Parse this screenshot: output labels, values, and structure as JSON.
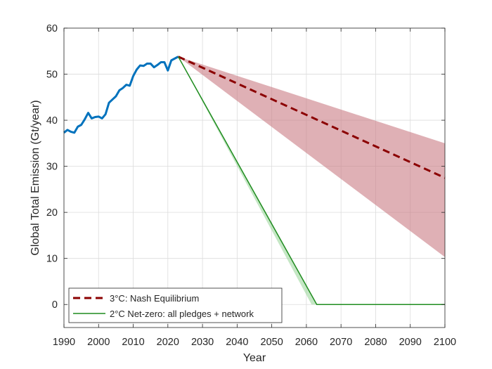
{
  "chart_data": {
    "type": "line",
    "title": "",
    "xlabel": "Year",
    "ylabel": "Global Total Emission (Gt/year)",
    "xlim": [
      1990,
      2100
    ],
    "ylim": [
      -5,
      60
    ],
    "xticks": [
      1990,
      2000,
      2010,
      2020,
      2030,
      2040,
      2050,
      2060,
      2070,
      2080,
      2090,
      2100
    ],
    "yticks": [
      0,
      10,
      20,
      30,
      40,
      50,
      60
    ],
    "grid": true,
    "legend_position": "bottom-left",
    "historical": {
      "color": "#0072bd",
      "x": [
        1990,
        1991,
        1992,
        1993,
        1994,
        1995,
        1996,
        1997,
        1998,
        1999,
        2000,
        2001,
        2002,
        2003,
        2004,
        2005,
        2006,
        2007,
        2008,
        2009,
        2010,
        2011,
        2012,
        2013,
        2014,
        2015,
        2016,
        2017,
        2018,
        2019,
        2020,
        2021,
        2022,
        2023
      ],
      "y": [
        37.3,
        37.9,
        37.5,
        37.3,
        38.6,
        39.0,
        40.2,
        41.6,
        40.4,
        40.7,
        40.8,
        40.4,
        41.3,
        43.8,
        44.5,
        45.2,
        46.5,
        47.0,
        47.7,
        47.5,
        49.6,
        51.0,
        51.9,
        51.8,
        52.3,
        52.3,
        51.5,
        52.0,
        52.6,
        52.6,
        50.8,
        53.0,
        53.4,
        53.8
      ]
    },
    "series": [
      {
        "name": "3°C: Nash Equilibrium",
        "color": "#8b0000",
        "style": "dashed",
        "x": [
          2023,
          2100
        ],
        "y": [
          53.8,
          27.5
        ],
        "band": {
          "color": "#c97b84",
          "x": [
            2023,
            2100
          ],
          "lower": [
            53.8,
            10.3
          ],
          "upper": [
            53.8,
            35.0
          ]
        }
      },
      {
        "name": "2°C Net-zero: all pledges + network",
        "color": "#1f8c1f",
        "style": "solid",
        "x": [
          2023,
          2063,
          2100
        ],
        "y": [
          53.8,
          0,
          0
        ],
        "band": {
          "color": "#9fd79f",
          "x": [
            2023,
            2061.5,
            2063,
            2064.5,
            2100
          ],
          "lower": [
            53.8,
            0,
            0,
            0,
            0
          ],
          "upper": [
            53.8,
            2.0,
            0,
            0,
            0
          ]
        }
      }
    ]
  }
}
